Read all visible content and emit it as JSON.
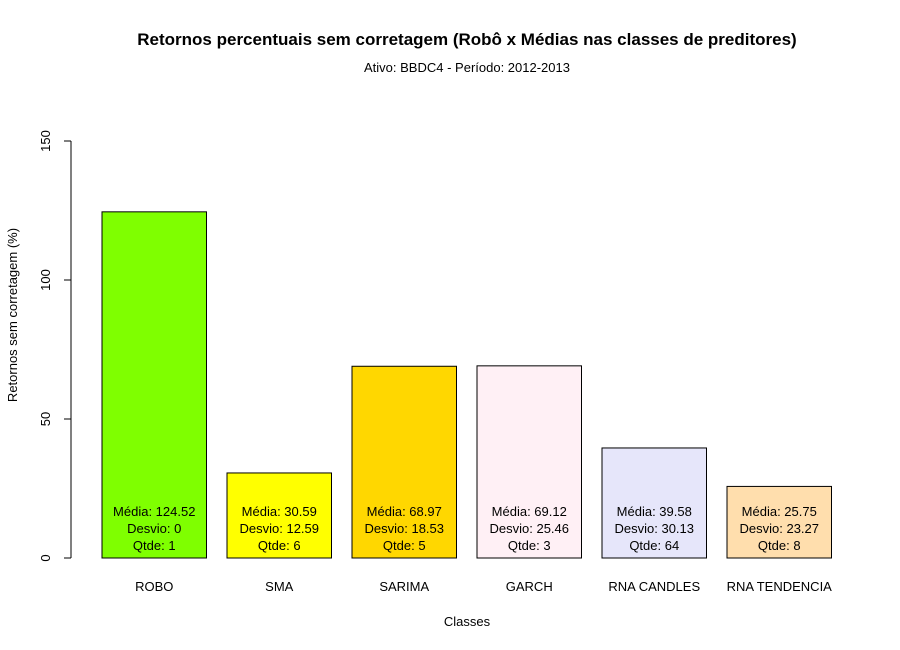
{
  "chart_data": {
    "type": "bar",
    "title": "Retornos percentuais sem corretagem (Robô x Médias nas classes de preditores)",
    "subtitle": "Ativo:  BBDC4  - Período: 2012-2013",
    "xlabel": "Classes",
    "ylabel": "Retornos sem corretagem (%)",
    "ylim": [
      0,
      150
    ],
    "yticks": [
      "0",
      "50",
      "100",
      "150"
    ],
    "grid": false,
    "categories": [
      "ROBO",
      "SMA",
      "SARIMA",
      "GARCH",
      "RNA CANDLES",
      "RNA TENDENCIA"
    ],
    "values": [
      124.52,
      30.59,
      68.97,
      69.12,
      39.58,
      25.75
    ],
    "colors": [
      "#7fff00",
      "#ffff00",
      "#ffd700",
      "#fff0f5",
      "#e6e6fa",
      "#ffdead"
    ],
    "labels": [
      [
        "Média: 124.52",
        "Desvio: 0",
        "Qtde: 1"
      ],
      [
        "Média: 30.59",
        "Desvio: 12.59",
        "Qtde: 6"
      ],
      [
        "Média: 68.97",
        "Desvio: 18.53",
        "Qtde: 5"
      ],
      [
        "Média: 69.12",
        "Desvio: 25.46",
        "Qtde: 3"
      ],
      [
        "Média: 39.58",
        "Desvio: 30.13",
        "Qtde: 64"
      ],
      [
        "Média: 25.75",
        "Desvio: 23.27",
        "Qtde: 8"
      ]
    ]
  }
}
